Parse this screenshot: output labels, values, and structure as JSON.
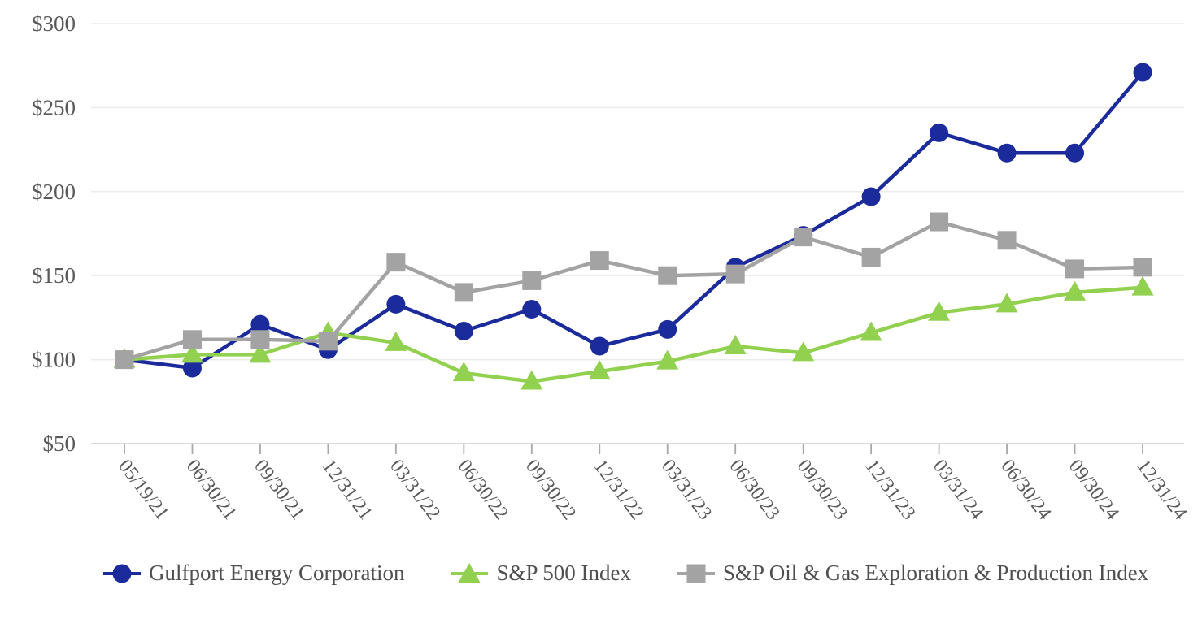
{
  "chart_data": {
    "type": "line",
    "x": [
      "05/19/21",
      "06/30/21",
      "09/30/21",
      "12/31/21",
      "03/31/22",
      "06/30/22",
      "09/30/22",
      "12/31/22",
      "03/31/23",
      "06/30/23",
      "09/30/23",
      "12/31/23",
      "03/31/24",
      "06/30/24",
      "09/30/24",
      "12/31/24"
    ],
    "series": [
      {
        "name": "Gulfport Energy Corporation",
        "marker": "circle",
        "color": "#1b2b9b",
        "values": [
          100,
          95,
          121,
          106,
          133,
          117,
          130,
          108,
          118,
          155,
          174,
          197,
          235,
          223,
          223,
          271
        ]
      },
      {
        "name": "S&P 500 Index",
        "marker": "triangle",
        "color": "#92d050",
        "values": [
          100,
          103,
          103,
          116,
          110,
          92,
          87,
          93,
          99,
          108,
          104,
          116,
          128,
          133,
          140,
          143
        ]
      },
      {
        "name": "S&P Oil & Gas Exploration & Production Index",
        "marker": "square",
        "color": "#a3a3a3",
        "values": [
          100,
          112,
          112,
          111,
          158,
          140,
          147,
          159,
          150,
          151,
          173,
          161,
          182,
          171,
          154,
          155
        ]
      }
    ],
    "y_ticks": [
      {
        "label": "$300",
        "value": 300
      },
      {
        "label": "$250",
        "value": 250
      },
      {
        "label": "$200",
        "value": 200
      },
      {
        "label": "$150",
        "value": 150
      },
      {
        "label": "$100",
        "value": 100
      },
      {
        "label": "$50",
        "value": 50
      }
    ],
    "ylim": [
      50,
      300
    ],
    "grid": "horizontal",
    "legend_position": "bottom"
  }
}
